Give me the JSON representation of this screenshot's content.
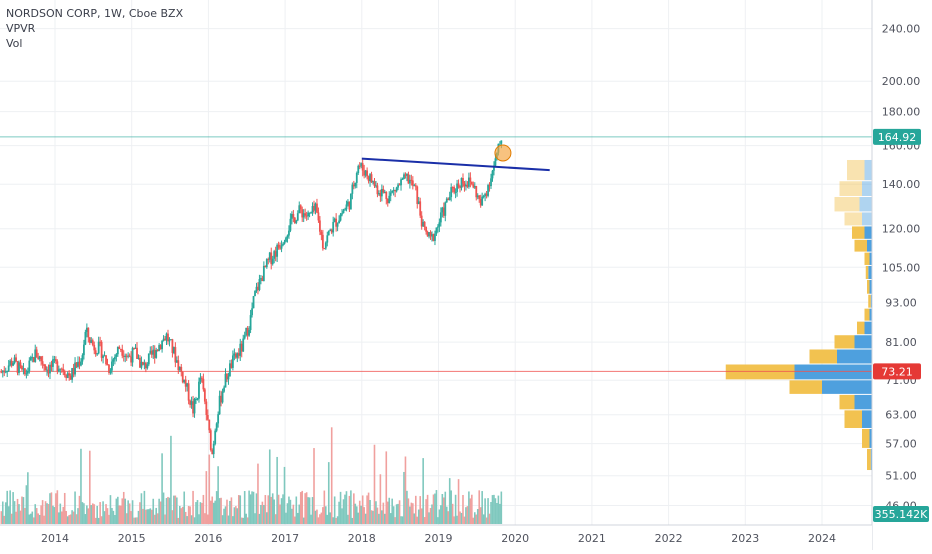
{
  "header": {
    "symbol_line": "NORDSON CORP, 1W, Cboe BZX",
    "indicator_1": "VPVR",
    "indicator_2": "Vol"
  },
  "price_axis": {
    "ticks": [
      "240.00",
      "200.00",
      "180.00",
      "160.00",
      "140.00",
      "120.00",
      "105.00",
      "93.00",
      "81.00",
      "71.00",
      "63.00",
      "57.00",
      "51.00",
      "46.00"
    ],
    "tick_values": [
      240,
      200,
      180,
      160,
      140,
      120,
      105,
      93,
      81,
      71,
      63,
      57,
      51,
      46
    ],
    "scale": "log",
    "range": [
      43,
      265
    ]
  },
  "time_axis": {
    "ticks": [
      "2014",
      "2015",
      "2016",
      "2017",
      "2018",
      "2019",
      "2020",
      "2021",
      "2022",
      "2023",
      "2024"
    ],
    "tick_years": [
      2014,
      2015,
      2016,
      2017,
      2018,
      2019,
      2020,
      2021,
      2022,
      2023,
      2024
    ]
  },
  "badges": {
    "last_price": "164.92",
    "last_price_value": 164.92,
    "last_price_color": "#26a69a",
    "poc_price": "73.21",
    "poc_price_value": 73.21,
    "poc_color": "#e53935",
    "volume": "355.142K",
    "volume_color": "#26a69a"
  },
  "colors": {
    "up": "#26a69a",
    "down": "#ef5350",
    "up_volume": "#7fc8be",
    "down_volume": "#f0a09e",
    "vpvr_up": "#4ea0de",
    "vpvr_down": "#f2c250",
    "trendline": "#1a2fa8",
    "marker": "#f5a23a",
    "grid": "#eef0f3",
    "axis_text": "#50535e"
  },
  "chart_data": {
    "type": "candlestick",
    "interval": "1W",
    "x_unit": "year",
    "price_path": [
      [
        2013.3,
        73
      ],
      [
        2013.45,
        76
      ],
      [
        2013.6,
        72
      ],
      [
        2013.75,
        78
      ],
      [
        2013.9,
        74
      ],
      [
        2014.05,
        75
      ],
      [
        2014.2,
        72
      ],
      [
        2014.35,
        77
      ],
      [
        2014.4,
        84
      ],
      [
        2014.5,
        80
      ],
      [
        2014.6,
        79
      ],
      [
        2014.7,
        74
      ],
      [
        2014.85,
        80
      ],
      [
        2014.95,
        77
      ],
      [
        2015.05,
        78
      ],
      [
        2015.15,
        74
      ],
      [
        2015.25,
        77
      ],
      [
        2015.35,
        80
      ],
      [
        2015.45,
        83
      ],
      [
        2015.55,
        78
      ],
      [
        2015.7,
        70
      ],
      [
        2015.8,
        64
      ],
      [
        2015.85,
        67
      ],
      [
        2015.9,
        72
      ],
      [
        2016.0,
        60
      ],
      [
        2016.05,
        55
      ],
      [
        2016.1,
        62
      ],
      [
        2016.2,
        70
      ],
      [
        2016.3,
        75
      ],
      [
        2016.45,
        80
      ],
      [
        2016.55,
        88
      ],
      [
        2016.6,
        95
      ],
      [
        2016.7,
        102
      ],
      [
        2016.8,
        108
      ],
      [
        2016.9,
        112
      ],
      [
        2017.0,
        118
      ],
      [
        2017.1,
        124
      ],
      [
        2017.2,
        128
      ],
      [
        2017.3,
        125
      ],
      [
        2017.4,
        128
      ],
      [
        2017.5,
        113
      ],
      [
        2017.6,
        120
      ],
      [
        2017.7,
        125
      ],
      [
        2017.85,
        132
      ],
      [
        2017.95,
        150
      ],
      [
        2018.05,
        146
      ],
      [
        2018.2,
        138
      ],
      [
        2018.35,
        134
      ],
      [
        2018.5,
        140
      ],
      [
        2018.6,
        143
      ],
      [
        2018.7,
        137
      ],
      [
        2018.8,
        120
      ],
      [
        2018.9,
        115
      ],
      [
        2019.0,
        122
      ],
      [
        2019.15,
        135
      ],
      [
        2019.3,
        142
      ],
      [
        2019.45,
        140
      ],
      [
        2019.55,
        130
      ],
      [
        2019.65,
        140
      ],
      [
        2019.75,
        152
      ],
      [
        2019.82,
        165
      ]
    ],
    "volume_profile": [
      {
        "price": 145,
        "up": 6,
        "down": 14
      },
      {
        "price": 138,
        "up": 8,
        "down": 18
      },
      {
        "price": 130,
        "up": 10,
        "down": 20
      },
      {
        "price": 124,
        "up": 8,
        "down": 14
      },
      {
        "price": 118,
        "up": 6,
        "down": 10
      },
      {
        "price": 113,
        "up": 4,
        "down": 10
      },
      {
        "price": 108,
        "up": 2,
        "down": 4
      },
      {
        "price": 103,
        "up": 3,
        "down": 2
      },
      {
        "price": 98,
        "up": 2,
        "down": 2
      },
      {
        "price": 93,
        "up": 1,
        "down": 2
      },
      {
        "price": 89,
        "up": 2,
        "down": 4
      },
      {
        "price": 85,
        "up": 6,
        "down": 6
      },
      {
        "price": 81,
        "up": 14,
        "down": 16
      },
      {
        "price": 77,
        "up": 28,
        "down": 22
      },
      {
        "price": 73,
        "up": 62,
        "down": 55
      },
      {
        "price": 69,
        "up": 40,
        "down": 26
      },
      {
        "price": 66,
        "up": 14,
        "down": 12
      },
      {
        "price": 62,
        "up": 8,
        "down": 14
      },
      {
        "price": 58,
        "up": 2,
        "down": 6
      },
      {
        "price": 54,
        "up": 1,
        "down": 3
      }
    ],
    "trendline": {
      "x": [
        2018.0,
        2020.45
      ],
      "y": [
        153,
        147
      ]
    },
    "marker": {
      "x": 2019.84,
      "y": 156
    },
    "price_lines": [
      164.92,
      73.21
    ],
    "volume_last": "355.142K"
  }
}
